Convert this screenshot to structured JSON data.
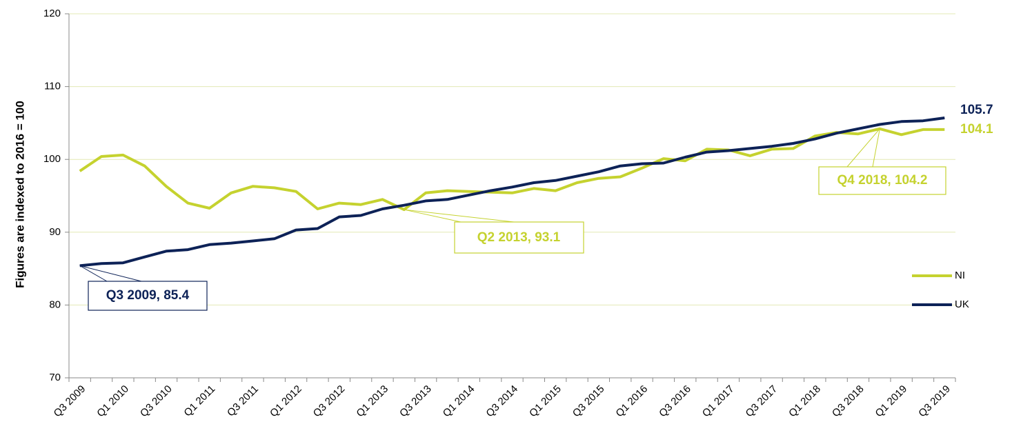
{
  "chart_data": {
    "type": "line",
    "y_label": "Figures are indexed to 2016 = 100",
    "categories": [
      "Q3 2009",
      null,
      "Q1 2010",
      null,
      "Q3 2010",
      null,
      "Q1 2011",
      null,
      "Q3 2011",
      null,
      "Q1 2012",
      null,
      "Q3 2012",
      null,
      "Q1 2013",
      null,
      "Q3 2013",
      null,
      "Q1 2014",
      null,
      "Q3 2014",
      null,
      "Q1 2015",
      null,
      "Q3 2015",
      null,
      "Q1 2016",
      null,
      "Q3 2016",
      null,
      "Q1 2017",
      null,
      "Q3 2017",
      null,
      "Q1 2018",
      null,
      "Q3 2018",
      null,
      "Q1 2019",
      null,
      "Q3 2019"
    ],
    "series": [
      {
        "name": "NI",
        "color": "#c5d22f",
        "values": [
          98.4,
          100.4,
          100.6,
          99.1,
          96.3,
          94.0,
          93.3,
          95.4,
          96.3,
          96.1,
          95.6,
          93.2,
          94.0,
          93.8,
          94.5,
          93.1,
          95.4,
          95.7,
          95.6,
          95.5,
          95.4,
          96.0,
          95.7,
          96.8,
          97.4,
          97.6,
          98.8,
          100.1,
          99.8,
          101.4,
          101.3,
          100.5,
          101.4,
          101.5,
          103.2,
          103.7,
          103.5,
          104.2,
          103.4,
          104.1,
          104.1
        ]
      },
      {
        "name": "UK",
        "color": "#0d2257",
        "values": [
          85.4,
          85.7,
          85.8,
          86.6,
          87.4,
          87.6,
          88.3,
          88.5,
          88.8,
          89.1,
          90.3,
          90.5,
          92.1,
          92.3,
          93.2,
          93.7,
          94.3,
          94.5,
          95.1,
          95.7,
          96.2,
          96.8,
          97.1,
          97.7,
          98.3,
          99.1,
          99.4,
          99.5,
          100.3,
          101.0,
          101.2,
          101.5,
          101.8,
          102.2,
          102.8,
          103.6,
          104.2,
          104.8,
          105.2,
          105.3,
          105.7
        ]
      }
    ],
    "annotations": [
      "105.7",
      "104.1",
      "Q3 2009, 85.4",
      "Q2 2013, 93.1",
      "Q4 2018, 104.2"
    ],
    "ylim": [
      70,
      120
    ],
    "yticks": [
      70,
      80,
      90,
      100,
      110,
      120
    ],
    "grid": true,
    "legend": "right"
  }
}
